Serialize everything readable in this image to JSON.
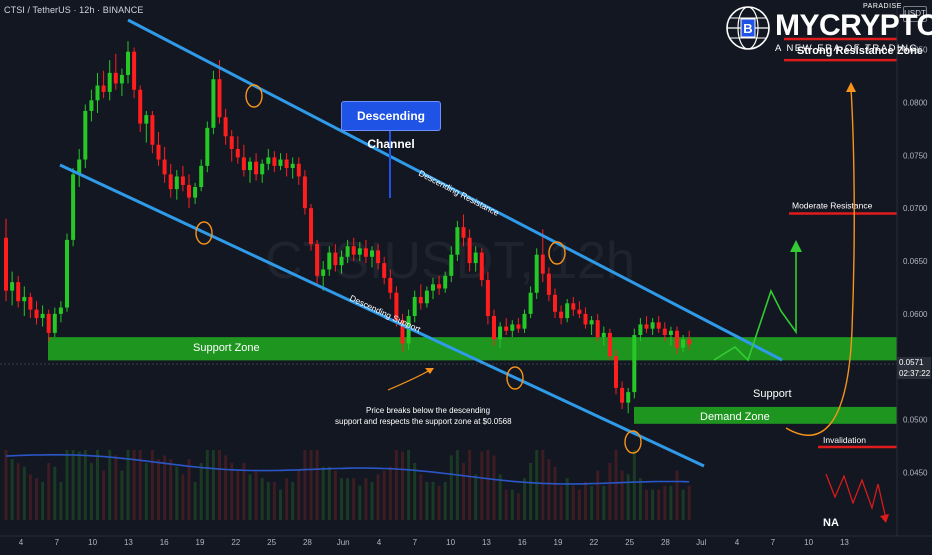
{
  "header": {
    "symbol_line": "CTSI / TetherUS · 12h · BINANCE",
    "currency_badge": "USDT"
  },
  "logo": {
    "brand": "MYCRYPTO",
    "paradise": "PARADISE",
    "tagline": "A NEW ERA OF TRADING"
  },
  "watermark": "CTSIUSDT, 12h",
  "annotations": {
    "descending_channel": "Descending Channel",
    "descending_resistance": "Descending Resistance",
    "descending_support": "Descending Support",
    "support_zone": "Support Zone",
    "demand_zone": "Demand Zone",
    "strong_resistance_zone": "Strong Resistance Zone",
    "moderate_resistance": "Moderate Resistance",
    "support": "Support",
    "invalidation": "Invalidation",
    "na": "NA",
    "break_note_line1": "Price breaks below the descending",
    "break_note_line2": "support and  respects the support zone at $0.0568"
  },
  "price_readout": {
    "last_price": "0.0571",
    "countdown": "02:37:22"
  },
  "colors": {
    "background": "#131722",
    "up_candle": "#26c826",
    "down_candle": "#ff1e1e",
    "channel_line": "#2f9be8",
    "zone_green": "#1fa31f",
    "resistance_red": "#e01b1b",
    "volume_ma": "#2a56c6",
    "projection_orange": "#f7931a",
    "projection_green": "#33cc33"
  },
  "chart_data": {
    "type": "candlestick",
    "symbol": "CTSI / TetherUS",
    "timeframe": "12h",
    "exchange": "BINANCE",
    "ylim": [
      0.0405,
      0.0878
    ],
    "y_ticks": [
      "0.0850",
      "0.0800",
      "0.0750",
      "0.0700",
      "0.0650",
      "0.0600",
      "0.0550",
      "0.0500",
      "0.0450"
    ],
    "x_ticks": [
      "4",
      "7",
      "10",
      "13",
      "16",
      "19",
      "22",
      "25",
      "28",
      "Jun",
      "4",
      "7",
      "10",
      "13",
      "16",
      "19",
      "22",
      "25",
      "28",
      "Jul",
      "4",
      "7",
      "10",
      "13"
    ],
    "candles": [
      [
        0.0672,
        0.069,
        0.0612,
        0.0622
      ],
      [
        0.0622,
        0.064,
        0.0608,
        0.063
      ],
      [
        0.063,
        0.0636,
        0.0606,
        0.0612
      ],
      [
        0.0612,
        0.0626,
        0.0598,
        0.0616
      ],
      [
        0.0616,
        0.062,
        0.0596,
        0.0604
      ],
      [
        0.0604,
        0.0612,
        0.059,
        0.0596
      ],
      [
        0.0596,
        0.0608,
        0.0588,
        0.06
      ],
      [
        0.06,
        0.0604,
        0.0574,
        0.0582
      ],
      [
        0.0582,
        0.0606,
        0.0578,
        0.06
      ],
      [
        0.06,
        0.0612,
        0.0592,
        0.0606
      ],
      [
        0.0606,
        0.0676,
        0.0602,
        0.067
      ],
      [
        0.067,
        0.0738,
        0.0664,
        0.0732
      ],
      [
        0.0732,
        0.0756,
        0.072,
        0.0746
      ],
      [
        0.0746,
        0.0798,
        0.0738,
        0.0792
      ],
      [
        0.0792,
        0.0812,
        0.0782,
        0.0802
      ],
      [
        0.0802,
        0.0828,
        0.079,
        0.0816
      ],
      [
        0.0816,
        0.083,
        0.0804,
        0.081
      ],
      [
        0.081,
        0.084,
        0.0802,
        0.0828
      ],
      [
        0.0828,
        0.0846,
        0.0812,
        0.0818
      ],
      [
        0.0818,
        0.0832,
        0.0806,
        0.0826
      ],
      [
        0.0826,
        0.0858,
        0.0818,
        0.0848
      ],
      [
        0.0848,
        0.0852,
        0.0804,
        0.0812
      ],
      [
        0.0812,
        0.0816,
        0.0772,
        0.078
      ],
      [
        0.078,
        0.0792,
        0.0762,
        0.0788
      ],
      [
        0.0788,
        0.0792,
        0.0752,
        0.076
      ],
      [
        0.076,
        0.0772,
        0.074,
        0.0746
      ],
      [
        0.0746,
        0.0758,
        0.0724,
        0.0732
      ],
      [
        0.0732,
        0.0742,
        0.071,
        0.0718
      ],
      [
        0.0718,
        0.0736,
        0.0708,
        0.073
      ],
      [
        0.073,
        0.074,
        0.0716,
        0.0722
      ],
      [
        0.0722,
        0.0732,
        0.07,
        0.071
      ],
      [
        0.071,
        0.0724,
        0.0704,
        0.072
      ],
      [
        0.072,
        0.0746,
        0.0716,
        0.074
      ],
      [
        0.074,
        0.0782,
        0.0734,
        0.0776
      ],
      [
        0.0776,
        0.083,
        0.077,
        0.0822
      ],
      [
        0.0822,
        0.084,
        0.078,
        0.0786
      ],
      [
        0.0786,
        0.0794,
        0.076,
        0.0768
      ],
      [
        0.0768,
        0.0774,
        0.0744,
        0.0756
      ],
      [
        0.0756,
        0.0768,
        0.0742,
        0.0748
      ],
      [
        0.0748,
        0.076,
        0.073,
        0.0736
      ],
      [
        0.0736,
        0.0748,
        0.0724,
        0.0744
      ],
      [
        0.0744,
        0.0752,
        0.0726,
        0.0732
      ],
      [
        0.0732,
        0.0746,
        0.0724,
        0.0742
      ],
      [
        0.0742,
        0.0756,
        0.0736,
        0.0748
      ],
      [
        0.0748,
        0.0754,
        0.0734,
        0.074
      ],
      [
        0.074,
        0.0752,
        0.0736,
        0.0746
      ],
      [
        0.0746,
        0.0752,
        0.073,
        0.0738
      ],
      [
        0.0738,
        0.0748,
        0.0728,
        0.0742
      ],
      [
        0.0742,
        0.0748,
        0.0722,
        0.073
      ],
      [
        0.073,
        0.0736,
        0.0694,
        0.07
      ],
      [
        0.07,
        0.0704,
        0.066,
        0.0666
      ],
      [
        0.0666,
        0.067,
        0.0628,
        0.0636
      ],
      [
        0.0636,
        0.065,
        0.0622,
        0.0642
      ],
      [
        0.0642,
        0.0664,
        0.0636,
        0.0658
      ],
      [
        0.0658,
        0.0666,
        0.064,
        0.0646
      ],
      [
        0.0646,
        0.066,
        0.0638,
        0.0654
      ],
      [
        0.0654,
        0.067,
        0.0648,
        0.0664
      ],
      [
        0.0664,
        0.0672,
        0.065,
        0.0656
      ],
      [
        0.0656,
        0.0668,
        0.065,
        0.0662
      ],
      [
        0.0662,
        0.067,
        0.0648,
        0.0654
      ],
      [
        0.0654,
        0.0664,
        0.0644,
        0.066
      ],
      [
        0.066,
        0.0666,
        0.0642,
        0.0648
      ],
      [
        0.0648,
        0.0654,
        0.0628,
        0.0634
      ],
      [
        0.0634,
        0.0642,
        0.0614,
        0.062
      ],
      [
        0.062,
        0.0626,
        0.0588,
        0.0594
      ],
      [
        0.0594,
        0.06,
        0.0564,
        0.0572
      ],
      [
        0.0572,
        0.0604,
        0.0566,
        0.0598
      ],
      [
        0.0598,
        0.0622,
        0.0592,
        0.0616
      ],
      [
        0.0616,
        0.0628,
        0.0604,
        0.061
      ],
      [
        0.061,
        0.0626,
        0.0606,
        0.0622
      ],
      [
        0.0622,
        0.0634,
        0.0614,
        0.0628
      ],
      [
        0.0628,
        0.0636,
        0.0618,
        0.0624
      ],
      [
        0.0624,
        0.064,
        0.062,
        0.0636
      ],
      [
        0.0636,
        0.0664,
        0.063,
        0.0656
      ],
      [
        0.0656,
        0.0688,
        0.065,
        0.0682
      ],
      [
        0.0682,
        0.0694,
        0.0664,
        0.0672
      ],
      [
        0.0672,
        0.068,
        0.064,
        0.0648
      ],
      [
        0.0648,
        0.0664,
        0.064,
        0.0658
      ],
      [
        0.0658,
        0.0662,
        0.0626,
        0.0632
      ],
      [
        0.0632,
        0.064,
        0.059,
        0.0598
      ],
      [
        0.0598,
        0.0604,
        0.057,
        0.0576
      ],
      [
        0.0576,
        0.0592,
        0.0568,
        0.0588
      ],
      [
        0.0588,
        0.0596,
        0.058,
        0.0584
      ],
      [
        0.0584,
        0.0594,
        0.0578,
        0.059
      ],
      [
        0.059,
        0.0596,
        0.0582,
        0.0586
      ],
      [
        0.0586,
        0.0604,
        0.0582,
        0.06
      ],
      [
        0.06,
        0.0626,
        0.0596,
        0.062
      ],
      [
        0.062,
        0.0662,
        0.0614,
        0.0656
      ],
      [
        0.0656,
        0.068,
        0.063,
        0.0638
      ],
      [
        0.0638,
        0.0644,
        0.0612,
        0.0618
      ],
      [
        0.0618,
        0.0624,
        0.0596,
        0.0602
      ],
      [
        0.0602,
        0.0608,
        0.059,
        0.0596
      ],
      [
        0.0596,
        0.0614,
        0.0592,
        0.061
      ],
      [
        0.061,
        0.0616,
        0.0598,
        0.0604
      ],
      [
        0.0604,
        0.0612,
        0.0596,
        0.06
      ],
      [
        0.06,
        0.0606,
        0.0586,
        0.059
      ],
      [
        0.059,
        0.0598,
        0.058,
        0.0594
      ],
      [
        0.0594,
        0.06,
        0.0574,
        0.0578
      ],
      [
        0.0578,
        0.0588,
        0.057,
        0.0582
      ],
      [
        0.0582,
        0.0586,
        0.0556,
        0.056
      ],
      [
        0.056,
        0.0566,
        0.0524,
        0.053
      ],
      [
        0.053,
        0.0536,
        0.051,
        0.0516
      ],
      [
        0.0516,
        0.053,
        0.0506,
        0.0526
      ],
      [
        0.0526,
        0.0586,
        0.052,
        0.058
      ],
      [
        0.058,
        0.0596,
        0.0574,
        0.059
      ],
      [
        0.059,
        0.0598,
        0.0582,
        0.0586
      ],
      [
        0.0586,
        0.0596,
        0.058,
        0.0592
      ],
      [
        0.0592,
        0.0598,
        0.0582,
        0.0586
      ],
      [
        0.0586,
        0.0592,
        0.0574,
        0.058
      ],
      [
        0.058,
        0.0588,
        0.057,
        0.0584
      ],
      [
        0.0584,
        0.0588,
        0.0562,
        0.0568
      ],
      [
        0.0568,
        0.058,
        0.0564,
        0.0576
      ],
      [
        0.0576,
        0.0584,
        0.0566,
        0.0571
      ]
    ],
    "support_zone": [
      0.0556,
      0.0578
    ],
    "demand_zone": [
      0.0496,
      0.0512
    ],
    "strong_resistance_zone": [
      0.084,
      0.086
    ],
    "moderate_resistance": 0.0695,
    "invalidation": 0.0474,
    "descending_resistance_line": [
      [
        0.089,
        0.058
      ]
    ],
    "descending_support_line": [
      [
        0.076,
        0.0475
      ]
    ]
  }
}
